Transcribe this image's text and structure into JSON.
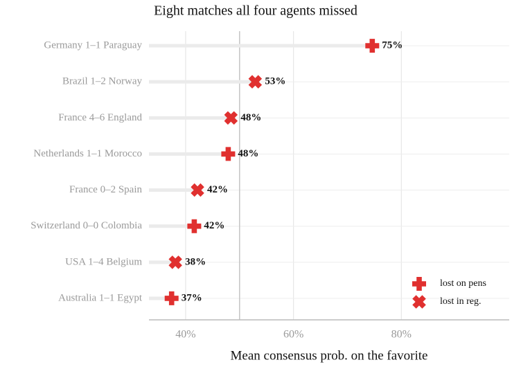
{
  "chart_data": {
    "type": "dot",
    "title": "Eight matches all four agents missed",
    "x_label": "Mean consensus prob. on the favorite",
    "categories": [
      "Germany 1–1 Paraguay",
      "Brazil 1–2 Norway",
      "France 4–6 England",
      "Netherlands 1–1 Morocco",
      "France 0–2 Spain",
      "Switzerland 0–0 Colombia",
      "USA 1–4 Belgium",
      "Australia 1–1 Egypt"
    ],
    "values": [
      74.6,
      52.9,
      48.4,
      47.9,
      42.2,
      41.6,
      38.1,
      37.4
    ],
    "value_labels": [
      "75%",
      "53%",
      "48%",
      "48%",
      "42%",
      "42%",
      "38%",
      "37%"
    ],
    "shapes": [
      "plus",
      "cross",
      "cross",
      "plus",
      "cross",
      "plus",
      "cross",
      "plus"
    ],
    "color": "#e0302f",
    "legend": [
      {
        "name": "lost on pens",
        "shape": "plus"
      },
      {
        "name": "lost in reg.",
        "shape": "cross"
      }
    ],
    "legend_position": "lower right",
    "reference_line": 50,
    "xlim": [
      33.2,
      100
    ],
    "xticks": [
      {
        "value": 40,
        "label": "40%"
      },
      {
        "value": 60,
        "label": "60%"
      },
      {
        "value": 80,
        "label": "80%"
      }
    ],
    "grid": true
  }
}
